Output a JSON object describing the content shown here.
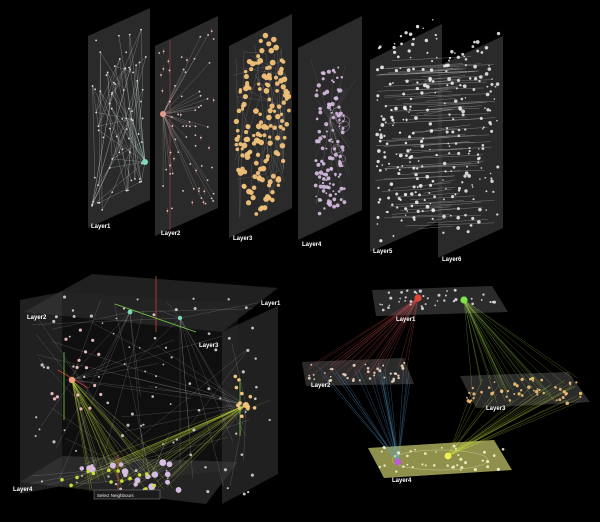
{
  "panels": {
    "top": {
      "layers": [
        "Layer1",
        "Layer2",
        "Layer3",
        "Layer4",
        "Layer5",
        "Layer6"
      ]
    },
    "bottom_left": {
      "layers": [
        "Layer1",
        "Layer2",
        "Layer3",
        "Layer4"
      ],
      "tooltip": "Select Neighbours"
    },
    "bottom_right": {
      "layers": [
        "Layer1",
        "Layer2",
        "Layer3",
        "Layer4"
      ]
    }
  },
  "colors": {
    "background": "#000000",
    "plane_fill": "#3a3a3a",
    "layer3_nodes": "#f2c27a",
    "layer4_nodes": "#d8bde3",
    "highlight_green": "#7fe34a",
    "highlight_red": "#e0453a",
    "highlight_cyan": "#7fd8b8",
    "edge_blue": "#5fa8d8",
    "edge_yellow_green": "#c8dc3a",
    "selected_plane": "#a9a95a",
    "selected_purple": "#c05ad8"
  }
}
